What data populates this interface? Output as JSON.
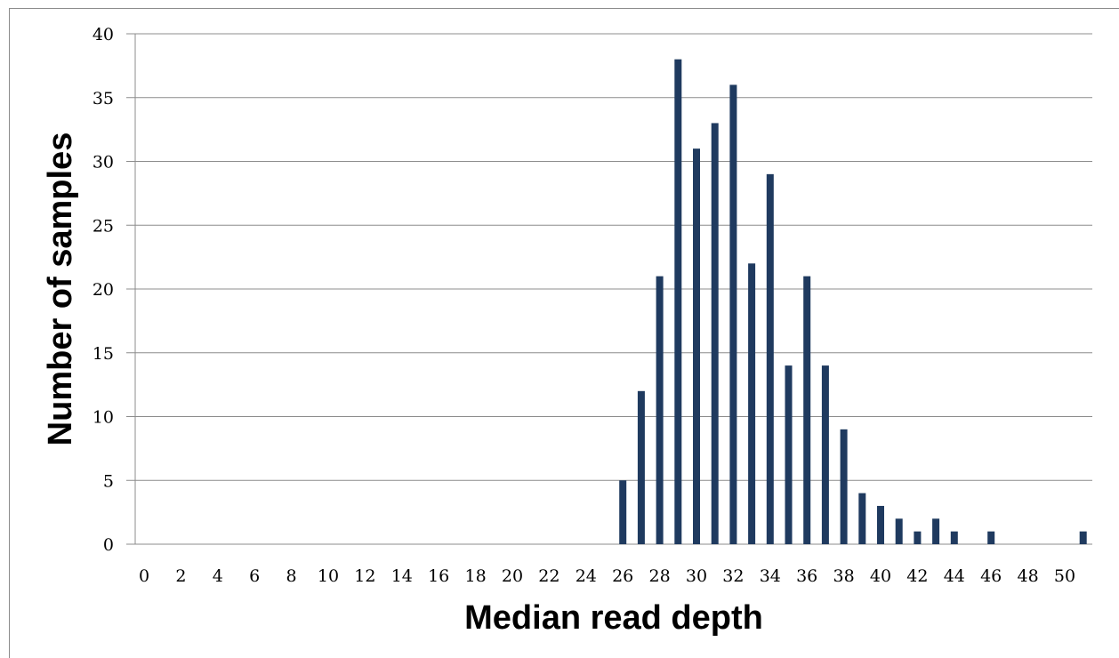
{
  "chart_data": {
    "type": "bar",
    "title": "",
    "xlabel": "Median read depth",
    "ylabel": "Number of samples",
    "ylim": [
      0,
      40
    ],
    "y_ticks": [
      "0",
      "5",
      "10",
      "15",
      "20",
      "25",
      "30",
      "35",
      "40"
    ],
    "grid": true,
    "legend": "none",
    "bar_color": "#1f3a5f",
    "x_tick_labels": [
      "0",
      "2",
      "4",
      "6",
      "8",
      "10",
      "12",
      "14",
      "16",
      "18",
      "20",
      "22",
      "24",
      "26",
      "28",
      "30",
      "32",
      "34",
      "36",
      "38",
      "40",
      "42",
      "44",
      "46",
      "48",
      "50"
    ],
    "categories": [
      0,
      1,
      2,
      3,
      4,
      5,
      6,
      7,
      8,
      9,
      10,
      11,
      12,
      13,
      14,
      15,
      16,
      17,
      18,
      19,
      20,
      21,
      22,
      23,
      24,
      25,
      26,
      27,
      28,
      29,
      30,
      31,
      32,
      33,
      34,
      35,
      36,
      37,
      38,
      39,
      40,
      41,
      42,
      43,
      44,
      45,
      46,
      47,
      48,
      49,
      50,
      51
    ],
    "values": [
      0,
      0,
      0,
      0,
      0,
      0,
      0,
      0,
      0,
      0,
      0,
      0,
      0,
      0,
      0,
      0,
      0,
      0,
      0,
      0,
      0,
      0,
      0,
      0,
      0,
      0,
      5,
      12,
      21,
      38,
      31,
      33,
      36,
      22,
      29,
      14,
      21,
      14,
      9,
      4,
      3,
      2,
      1,
      2,
      1,
      0,
      1,
      0,
      0,
      0,
      0,
      1
    ]
  }
}
